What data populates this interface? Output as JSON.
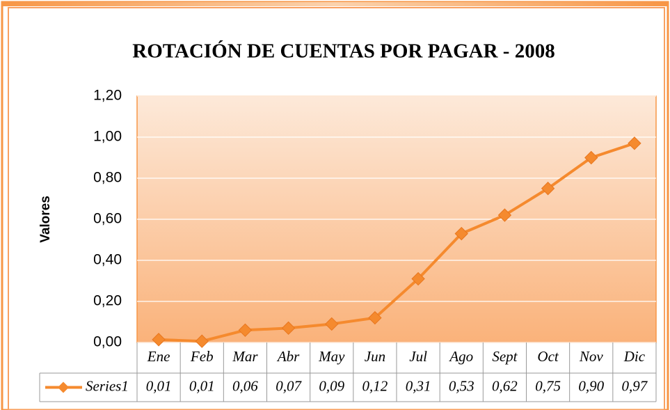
{
  "chart_data": {
    "type": "line",
    "title": "ROTACIÓN DE CUENTAS POR PAGAR - 2008",
    "y_label": "Valores",
    "categories": [
      "Ene",
      "Feb",
      "Mar",
      "Abr",
      "May",
      "Jun",
      "Jul",
      "Ago",
      "Sept",
      "Oct",
      "Nov",
      "Dic"
    ],
    "series": [
      {
        "name": "Series1",
        "color": "#f58a2e",
        "values": [
          0.014,
          0.006,
          0.06,
          0.07,
          0.09,
          0.12,
          0.31,
          0.53,
          0.62,
          0.75,
          0.9,
          0.97
        ],
        "value_labels": [
          "0,01",
          "0,01",
          "0,06",
          "0,07",
          "0,09",
          "0,12",
          "0,31",
          "0,53",
          "0,62",
          "0,75",
          "0,90",
          "0,97"
        ]
      }
    ],
    "ylim": [
      0,
      1.2
    ],
    "yticks": [
      {
        "value": 0,
        "label": "0,00"
      },
      {
        "value": 0.2,
        "label": "0,20"
      },
      {
        "value": 0.4,
        "label": "0,40"
      },
      {
        "value": 0.6,
        "label": "0,60"
      },
      {
        "value": 0.8,
        "label": "0,80"
      },
      {
        "value": 1.0,
        "label": "1,00"
      },
      {
        "value": 1.2,
        "label": "1,20"
      }
    ],
    "grid": true
  }
}
